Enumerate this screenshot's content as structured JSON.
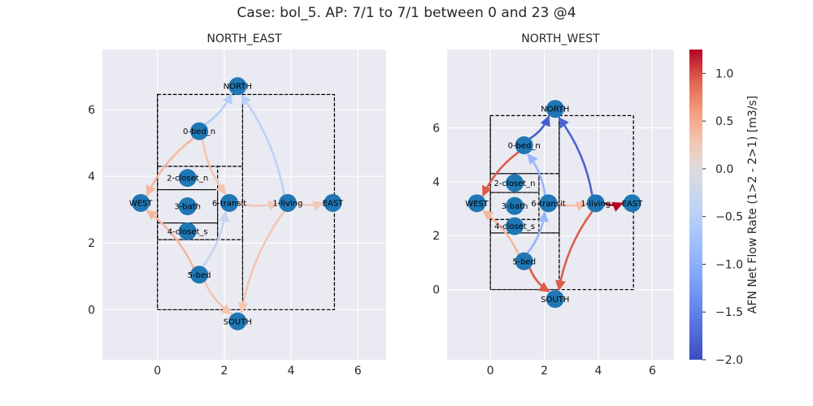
{
  "figure": {
    "title": "Case: bol_5. AP: 7/1 to 7/1 between 0 and 23 @4"
  },
  "chart_data": [
    {
      "type": "network",
      "title": "NORTH_EAST",
      "xlim": [
        -1.6,
        6.8
      ],
      "ylim": [
        -1.5,
        7.8
      ],
      "xticks": [
        0,
        2,
        4,
        6
      ],
      "yticks": [
        0,
        2,
        4,
        6
      ],
      "grid": true,
      "rooms": [
        {
          "x0": 0.0,
          "y0": 0.0,
          "x1": 5.3,
          "y1": 6.45
        },
        {
          "x0": 0.0,
          "y0": 2.1,
          "x1": 2.55,
          "y1": 6.45
        },
        {
          "x0": 0.0,
          "y0": 4.3,
          "x1": 2.55,
          "y1": 6.45
        },
        {
          "x0": 0.0,
          "y0": 3.6,
          "x1": 1.8,
          "y1": 4.3
        },
        {
          "x0": 0.0,
          "y0": 2.6,
          "x1": 1.8,
          "y1": 3.6
        },
        {
          "x0": 0.0,
          "y0": 2.1,
          "x1": 1.8,
          "y1": 2.6
        },
        {
          "x0": 1.8,
          "y0": 2.1,
          "x1": 2.55,
          "y1": 4.3
        },
        {
          "x0": 2.55,
          "y0": 0.0,
          "x1": 5.3,
          "y1": 6.45
        },
        {
          "x0": 0.0,
          "y0": 0.0,
          "x1": 2.55,
          "y1": 2.1
        }
      ],
      "nodes": [
        {
          "id": "NORTH",
          "x": 2.4,
          "y": 6.7
        },
        {
          "id": "0-bed_n",
          "x": 1.25,
          "y": 5.35
        },
        {
          "id": "2-closet_n",
          "x": 0.9,
          "y": 3.95
        },
        {
          "id": "WEST",
          "x": -0.5,
          "y": 3.2
        },
        {
          "id": "3-bath",
          "x": 0.9,
          "y": 3.1
        },
        {
          "id": "6-transit",
          "x": 2.15,
          "y": 3.2
        },
        {
          "id": "1-living",
          "x": 3.9,
          "y": 3.2
        },
        {
          "id": "EAST",
          "x": 5.25,
          "y": 3.2
        },
        {
          "id": "4-closet_s",
          "x": 0.9,
          "y": 2.35
        },
        {
          "id": "5-bed",
          "x": 1.25,
          "y": 1.05
        },
        {
          "id": "SOUTH",
          "x": 2.4,
          "y": -0.35
        }
      ],
      "edges": [
        {
          "from": "NORTH",
          "to": "0-bed_n",
          "value": -0.55
        },
        {
          "from": "NORTH",
          "to": "1-living",
          "value": -0.45
        },
        {
          "from": "0-bed_n",
          "to": "WEST",
          "value": 0.4
        },
        {
          "from": "0-bed_n",
          "to": "6-transit",
          "value": 0.3
        },
        {
          "from": "6-transit",
          "to": "1-living",
          "value": 0.25
        },
        {
          "from": "1-living",
          "to": "EAST",
          "value": 0.25
        },
        {
          "from": "6-transit",
          "to": "5-bed",
          "value": -0.3
        },
        {
          "from": "5-bed",
          "to": "WEST",
          "value": 0.4
        },
        {
          "from": "1-living",
          "to": "SOUTH",
          "value": 0.3
        },
        {
          "from": "5-bed",
          "to": "SOUTH",
          "value": 0.3
        }
      ]
    },
    {
      "type": "network",
      "title": "NORTH_WEST",
      "xlim": [
        -1.6,
        6.8
      ],
      "ylim": [
        -1.5,
        7.8
      ],
      "xticks": [
        0,
        2,
        4,
        6
      ],
      "yticks": [
        0,
        2,
        4,
        6
      ],
      "grid": true,
      "rooms": [
        {
          "x0": 0.0,
          "y0": 0.0,
          "x1": 5.3,
          "y1": 6.45
        },
        {
          "x0": 0.0,
          "y0": 2.1,
          "x1": 2.55,
          "y1": 6.45
        },
        {
          "x0": 0.0,
          "y0": 4.3,
          "x1": 2.55,
          "y1": 6.45
        },
        {
          "x0": 0.0,
          "y0": 3.6,
          "x1": 1.8,
          "y1": 4.3
        },
        {
          "x0": 0.0,
          "y0": 2.6,
          "x1": 1.8,
          "y1": 3.6
        },
        {
          "x0": 0.0,
          "y0": 2.1,
          "x1": 1.8,
          "y1": 2.6
        },
        {
          "x0": 1.8,
          "y0": 2.1,
          "x1": 2.55,
          "y1": 4.3
        },
        {
          "x0": 2.55,
          "y0": 0.0,
          "x1": 5.3,
          "y1": 6.45
        },
        {
          "x0": 0.0,
          "y0": 0.0,
          "x1": 2.55,
          "y1": 2.1
        }
      ],
      "nodes": [
        {
          "id": "NORTH",
          "x": 2.4,
          "y": 6.7
        },
        {
          "id": "0-bed_n",
          "x": 1.25,
          "y": 5.35
        },
        {
          "id": "2-closet_n",
          "x": 0.9,
          "y": 3.95
        },
        {
          "id": "WEST",
          "x": -0.5,
          "y": 3.2
        },
        {
          "id": "3-bath",
          "x": 0.9,
          "y": 3.1
        },
        {
          "id": "6-transit",
          "x": 2.15,
          "y": 3.2
        },
        {
          "id": "1-living",
          "x": 3.9,
          "y": 3.2
        },
        {
          "id": "EAST",
          "x": 5.25,
          "y": 3.2
        },
        {
          "id": "4-closet_s",
          "x": 0.9,
          "y": 2.35
        },
        {
          "id": "5-bed",
          "x": 1.25,
          "y": 1.05
        },
        {
          "id": "SOUTH",
          "x": 2.4,
          "y": -0.35
        }
      ],
      "edges": [
        {
          "from": "NORTH",
          "to": "0-bed_n",
          "value": -1.85
        },
        {
          "from": "NORTH",
          "to": "1-living",
          "value": -1.8
        },
        {
          "from": "0-bed_n",
          "to": "WEST",
          "value": 0.95
        },
        {
          "from": "0-bed_n",
          "to": "6-transit",
          "value": -0.9
        },
        {
          "from": "6-transit",
          "to": "1-living",
          "value": 0.35
        },
        {
          "from": "1-living",
          "to": "EAST",
          "value": 1.25
        },
        {
          "from": "6-transit",
          "to": "5-bed",
          "value": -0.9
        },
        {
          "from": "5-bed",
          "to": "WEST",
          "value": 0.4
        },
        {
          "from": "1-living",
          "to": "SOUTH",
          "value": 0.95
        },
        {
          "from": "5-bed",
          "to": "SOUTH",
          "value": 0.95
        }
      ]
    }
  ],
  "colorbar": {
    "label": "AFN Net Flow Rate (1>2 - 2>1) [m3/s]",
    "min": -2.0,
    "max": 1.25,
    "center": 0.0,
    "ticks": [
      -2.0,
      -1.5,
      -1.0,
      -0.5,
      0.0,
      0.5,
      1.0
    ],
    "tick_labels": [
      "−2.0",
      "−1.5",
      "−1.0",
      "−0.5",
      "0.0",
      "0.5",
      "1.0"
    ],
    "colormap": "coolwarm"
  },
  "colors": {
    "axes_bg": "#eaeaf2",
    "grid": "#ffffff",
    "node": "#1f77b4",
    "text": "#262626"
  }
}
